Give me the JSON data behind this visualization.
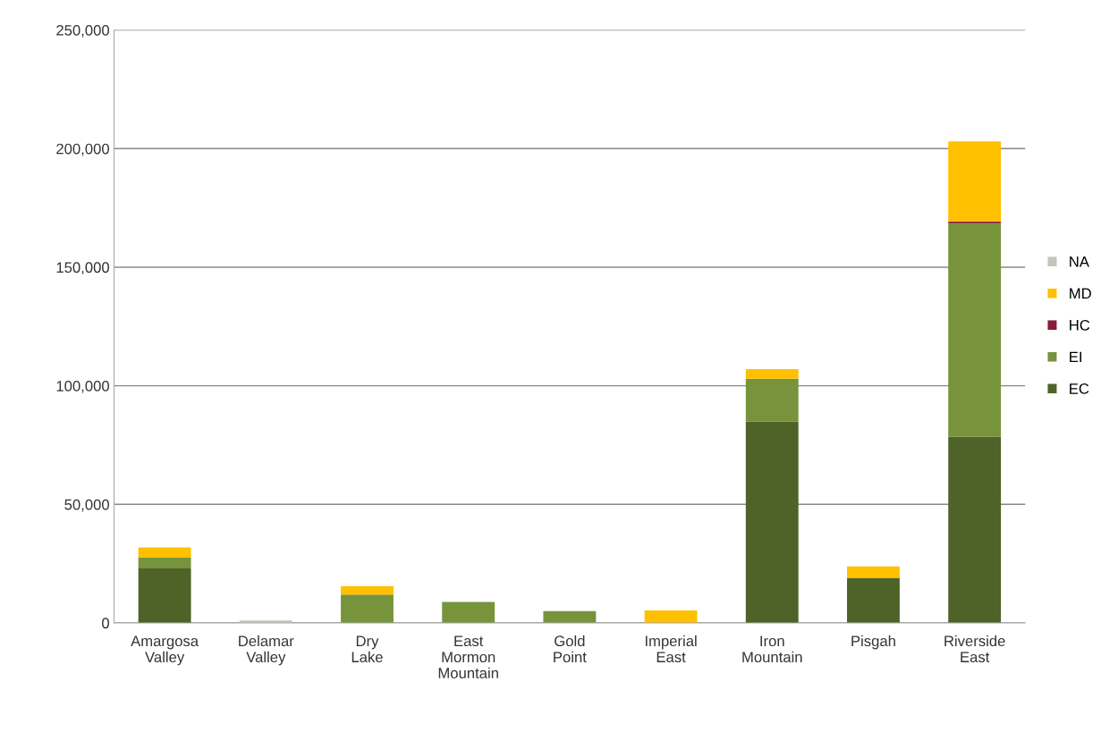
{
  "chart_data": {
    "type": "bar",
    "stacked": true,
    "categories": [
      "Amargosa Valley",
      "Delamar Valley",
      "Dry Lake",
      "East Mormon Mountain",
      "Gold Point",
      "Imperial East",
      "Iron Mountain",
      "Pisgah",
      "Riverside East"
    ],
    "series": [
      {
        "name": "EC",
        "color": "#4f6228",
        "values": [
          23000,
          0,
          0,
          0,
          0,
          0,
          85000,
          19000,
          78500
        ]
      },
      {
        "name": "EI",
        "color": "#77933c",
        "values": [
          4500,
          0,
          12000,
          8800,
          5000,
          0,
          18000,
          0,
          90000
        ]
      },
      {
        "name": "HC",
        "color": "#8b1a3a",
        "values": [
          0,
          0,
          0,
          0,
          0,
          0,
          0,
          0,
          800
        ]
      },
      {
        "name": "MD",
        "color": "#ffc000",
        "values": [
          4300,
          0,
          3500,
          0,
          0,
          5300,
          4000,
          4800,
          33700
        ]
      },
      {
        "name": "NA",
        "color": "#c4c4b8",
        "values": [
          0,
          1000,
          0,
          0,
          0,
          0,
          0,
          0,
          0
        ]
      }
    ],
    "ylim": [
      0,
      250000
    ],
    "yticks": [
      {
        "value": 0,
        "label": "0"
      },
      {
        "value": 50000,
        "label": "50,000"
      },
      {
        "value": 100000,
        "label": "100,000"
      },
      {
        "value": 150000,
        "label": "150,000"
      },
      {
        "value": 200000,
        "label": "200,000"
      },
      {
        "value": 250000,
        "label": "250,000"
      }
    ],
    "grid": "y",
    "legend": "right"
  }
}
